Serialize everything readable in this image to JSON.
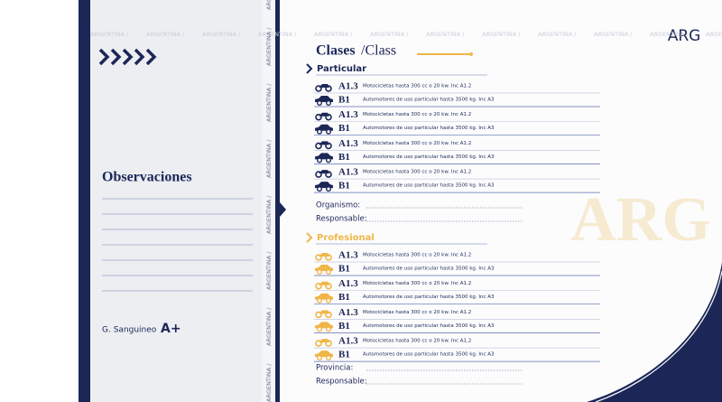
{
  "left": {
    "title": "Observaciones",
    "signature": "G. Sanguineo",
    "blood_type": "A+"
  },
  "watermark": "ARGENTINA /",
  "country": "ARG",
  "header": {
    "title": "Clases",
    "title_en": "/Class"
  },
  "sections": [
    {
      "name": "Particular",
      "rows": [
        {
          "class": "A1.3",
          "description": "Motocicletas hasta 300 cc o 20 kw. Inc A1.2"
        },
        {
          "class": "B1",
          "description": "Automotores de uso particular  hasta 3500 kg. Inc A3"
        },
        {
          "class": "A1.3",
          "description": "Motocicletas hasta 300 cc o 20 kw. Inc A1.2"
        },
        {
          "class": "B1",
          "description": "Automotores de uso particular  hasta 3500 kg. Inc A3"
        },
        {
          "class": "A1.3",
          "description": "Motocicletas hasta 300 cc o 20 kw. Inc A1.2"
        },
        {
          "class": "B1",
          "description": "Automotores de uso particular  hasta 3500 kg. Inc A3"
        },
        {
          "class": "A1.3",
          "description": "Motocicletas hasta 300 cc o 20 kw. Inc A1.2"
        },
        {
          "class": "B1",
          "description": "Automotores de uso particular  hasta 3500 kg. Inc A3"
        }
      ],
      "fields": [
        "Organismo:",
        "Responsable:"
      ]
    },
    {
      "name": "Profesional",
      "rows": [
        {
          "class": "A1.3",
          "description": "Motocicletas hasta 300 cc o 20 kw. Inc A1.2"
        },
        {
          "class": "B1",
          "description": "Automotores de uso particular  hasta 3500 kg. Inc A3"
        },
        {
          "class": "A1.3",
          "description": "Motocicletas hasta 300 cc o 20 kw. Inc A1.2"
        },
        {
          "class": "B1",
          "description": "Automotores de uso particular  hasta 3500 kg. Inc A3"
        },
        {
          "class": "A1.3",
          "description": "Motocicletas hasta 300 cc o 20 kw. Inc A1.2"
        },
        {
          "class": "B1",
          "description": "Automotores de uso particular  hasta 3500 kg. Inc A3"
        },
        {
          "class": "A1.3",
          "description": "Motocicletas hasta 300 cc o 20 kw. Inc A1.2"
        },
        {
          "class": "B1",
          "description": "Automotores de uso particular  hasta 3500 kg. Inc A3"
        }
      ],
      "fields": [
        "Provincia:",
        "Responsable:"
      ]
    }
  ]
}
